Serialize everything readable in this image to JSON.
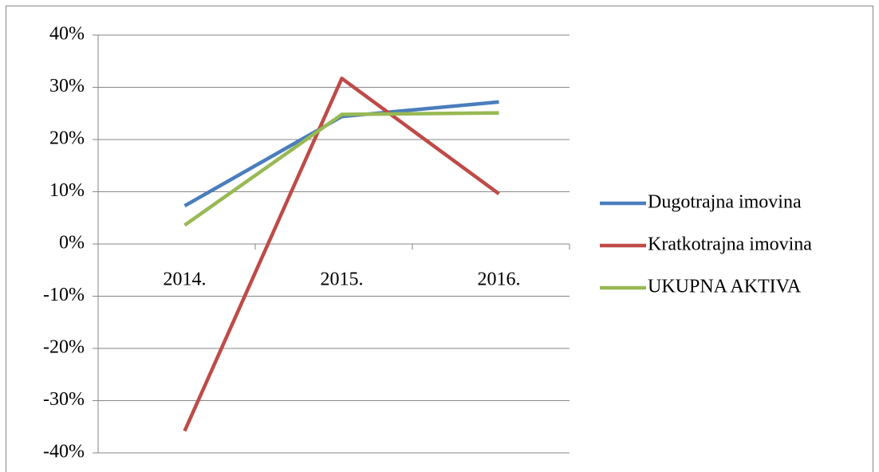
{
  "chart_data": {
    "type": "line",
    "categories": [
      "2014.",
      "2015.",
      "2016."
    ],
    "series": [
      {
        "name": "Dugotrajna imovina",
        "color": "#4a7ebb",
        "values": [
          7.3,
          24.4,
          27.2
        ]
      },
      {
        "name": "Kratkotrajna imovina",
        "color": "#be4b48",
        "values": [
          -35.8,
          31.7,
          9.6
        ]
      },
      {
        "name": "UKUPNA AKTIVA",
        "color": "#98b954",
        "values": [
          3.6,
          24.8,
          25.1
        ]
      }
    ],
    "ylim": [
      -40,
      40
    ],
    "yticks": [
      {
        "value": -40,
        "label": "-40%"
      },
      {
        "value": -30,
        "label": "-30%"
      },
      {
        "value": -20,
        "label": "-20%"
      },
      {
        "value": -10,
        "label": "-10%"
      },
      {
        "value": 0,
        "label": "0%"
      },
      {
        "value": 10,
        "label": "10%"
      },
      {
        "value": 20,
        "label": "20%"
      },
      {
        "value": 30,
        "label": "30%"
      },
      {
        "value": 40,
        "label": "40%"
      }
    ],
    "grid": true,
    "legend": "right"
  }
}
